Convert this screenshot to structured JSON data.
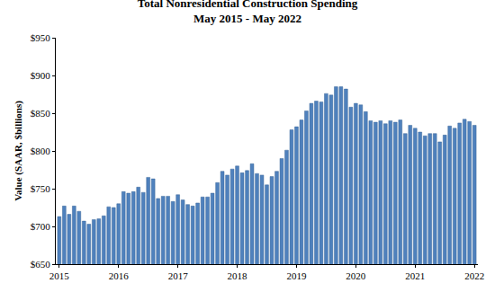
{
  "chart_data": {
    "type": "bar",
    "title": "Total Nonresidential Construction Spending",
    "subtitle": "May 2015 - May 2022",
    "y_label": "Value (SAAR, $billions)",
    "categories": [
      "2015",
      null,
      null,
      null,
      null,
      null,
      null,
      null,
      null,
      null,
      null,
      null,
      "2016",
      null,
      null,
      null,
      null,
      null,
      null,
      null,
      null,
      null,
      null,
      null,
      "2017",
      null,
      null,
      null,
      null,
      null,
      null,
      null,
      null,
      null,
      null,
      null,
      "2018",
      null,
      null,
      null,
      null,
      null,
      null,
      null,
      null,
      null,
      null,
      null,
      "2019",
      null,
      null,
      null,
      null,
      null,
      null,
      null,
      null,
      null,
      null,
      null,
      "2020",
      null,
      null,
      null,
      null,
      null,
      null,
      null,
      null,
      null,
      null,
      null,
      "2021",
      null,
      null,
      null,
      null,
      null,
      null,
      null,
      null,
      null,
      null,
      null,
      "2022"
    ],
    "values": [
      713,
      727,
      716,
      727,
      720,
      707,
      703,
      709,
      710,
      714,
      726,
      725,
      730,
      746,
      744,
      746,
      752,
      745,
      765,
      763,
      737,
      740,
      740,
      733,
      742,
      735,
      729,
      727,
      731,
      739,
      739,
      744,
      758,
      773,
      768,
      776,
      780,
      771,
      774,
      783,
      770,
      768,
      755,
      766,
      773,
      790,
      801,
      828,
      832,
      841,
      853,
      863,
      866,
      865,
      876,
      874,
      885,
      885,
      882,
      858,
      863,
      861,
      852,
      840,
      838,
      840,
      836,
      840,
      838,
      841,
      823,
      834,
      830,
      825,
      820,
      823,
      823,
      812,
      821,
      833,
      830,
      837,
      842,
      839,
      834
    ],
    "color": "#4f81bd",
    "ylim": [
      650,
      950
    ],
    "yticks": [
      {
        "value": 650,
        "label": "$650"
      },
      {
        "value": 700,
        "label": "$700"
      },
      {
        "value": 750,
        "label": "$750"
      },
      {
        "value": 800,
        "label": "$800"
      },
      {
        "value": 850,
        "label": "$850"
      },
      {
        "value": 900,
        "label": "$900"
      },
      {
        "value": 950,
        "label": "$950"
      }
    ],
    "grid": false
  }
}
